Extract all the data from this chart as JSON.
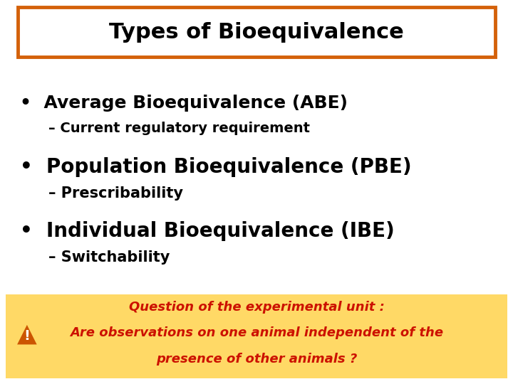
{
  "title": "Types of Bioequivalence",
  "title_box_color": "#D4610A",
  "title_bg_color": "#FFFFFF",
  "title_fontsize": 22,
  "title_fontweight": "bold",
  "background_color": "#FFFFFF",
  "bullet_items": [
    {
      "bullet": "•  Average Bioequivalence (ABE)",
      "sub": "– Current regulatory requirement",
      "bullet_size": 18,
      "sub_size": 14,
      "bullet_bold": true,
      "sub_bold": true
    },
    {
      "bullet": "•  Population Bioequivalence (PBE)",
      "sub": "– Prescribability",
      "bullet_size": 20,
      "sub_size": 15,
      "bullet_bold": true,
      "sub_bold": true
    },
    {
      "bullet": "•  Individual Bioequivalence (IBE)",
      "sub": "– Switchability",
      "bullet_size": 20,
      "sub_size": 15,
      "bullet_bold": true,
      "sub_bold": true
    }
  ],
  "bullet_color": "#000000",
  "sub_color": "#000000",
  "footer_bg": "#FFD966",
  "footer_text_line1": "Question of the experimental unit :",
  "footer_text_line2": "Are observations on one animal independent of the",
  "footer_text_line3": "presence of other animals ?",
  "footer_text_color": "#CC1100",
  "footer_fontsize": 13,
  "warning_color": "#CC5500"
}
